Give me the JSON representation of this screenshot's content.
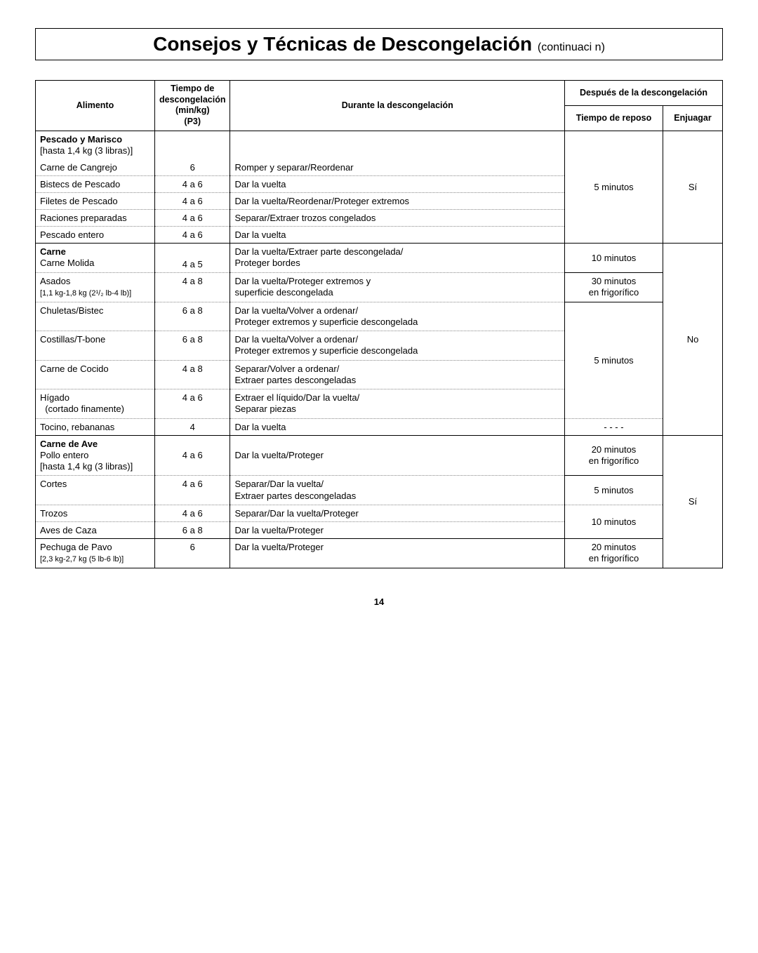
{
  "title": "Consejos y Técnicas de Descongelación",
  "titleCont": "(continuaci n)",
  "headers": {
    "alimento": "Alimento",
    "tiempo": "Tiempo de descongelación (min/kg) (P3)",
    "tiempoL1": "Tiempo de",
    "tiempoL2": "descongelación",
    "tiempoL3": "(min/kg)",
    "tiempoL4": "(P3)",
    "durante": "Durante la descongelación",
    "despues": "Después de la descongelación",
    "reposo": "Tiempo de reposo",
    "enjuagar": "Enjuagar"
  },
  "sections": {
    "pescado": {
      "groupTitle": "Pescado y Marisco",
      "groupSub": "[hasta 1,4 kg (3 libras)]",
      "rows": {
        "cangrejo": {
          "alimento": "Carne de Cangrejo",
          "tiempo": "6",
          "durante": "Romper y separar/Reordenar"
        },
        "bistecs": {
          "alimento": "Bistecs de Pescado",
          "tiempo": "4 a 6",
          "durante": "Dar la vuelta"
        },
        "filetes": {
          "alimento": "Filetes de Pescado",
          "tiempo": "4 a 6",
          "durante": "Dar la vuelta/Reordenar/Proteger extremos"
        },
        "raciones": {
          "alimento": "Raciones preparadas",
          "tiempo": "4 a 6",
          "durante": "Separar/Extraer trozos congelados"
        },
        "entero": {
          "alimento": "Pescado entero",
          "tiempo": "4 a 6",
          "durante": "Dar la vuelta"
        }
      },
      "reposo": "5 minutos",
      "enjuagar": "Sí"
    },
    "carne": {
      "rows": {
        "molida": {
          "alimentoL1": "Carne",
          "alimentoL2": "Carne Molida",
          "tiempo": "4 a 5",
          "duranteL1": "Dar la vuelta/Extraer parte descongelada/",
          "duranteL2": "Proteger bordes",
          "reposo": "10 minutos"
        },
        "asados": {
          "alimentoL1": "Asados",
          "alimentoL2": "[1,1 kg-1,8 kg (2¹/₂ lb-4 lb)]",
          "tiempo": "4 a 8",
          "duranteL1": "Dar la vuelta/Proteger extremos y",
          "duranteL2": "superficie descongelada",
          "reposoL1": "30 minutos",
          "reposoL2": "en frigorífico"
        },
        "chuletas": {
          "alimento": "Chuletas/Bistec",
          "tiempo": "6 a 8",
          "duranteL1": "Dar la vuelta/Volver a ordenar/",
          "duranteL2": "Proteger extremos y superficie descongelada"
        },
        "costillas": {
          "alimento": "Costillas/T-bone",
          "tiempo": "6 a 8",
          "duranteL1": "Dar la vuelta/Volver a ordenar/",
          "duranteL2": "Proteger extremos y superficie descongelada"
        },
        "cocido": {
          "alimento": "Carne de Cocido",
          "tiempo": "4 a 8",
          "duranteL1": "Separar/Volver a ordenar/",
          "duranteL2": "Extraer partes descongeladas"
        },
        "higado": {
          "alimentoL1": "Hígado",
          "alimentoL2": "  (cortado finamente)",
          "tiempo": "4 a 6",
          "duranteL1": "Extraer el líquido/Dar la vuelta/",
          "duranteL2": "Separar piezas"
        },
        "tocino": {
          "alimento": "Tocino, rebananas",
          "tiempo": "4",
          "durante": "Dar la vuelta",
          "reposo": "- - - -"
        }
      },
      "reposoMid": "5 minutos",
      "enjuagar": "No"
    },
    "ave": {
      "rows": {
        "pollo": {
          "alimentoL1": "Carne de Ave",
          "alimentoL2": "Pollo entero",
          "alimentoL3": "[hasta 1,4 kg (3 libras)]",
          "tiempo": "4 a 6",
          "durante": "Dar la vuelta/Proteger",
          "reposoL1": "20 minutos",
          "reposoL2": "en frigorífico"
        },
        "cortes": {
          "alimento": "Cortes",
          "tiempo": "4 a 6",
          "duranteL1": "Separar/Dar la vuelta/",
          "duranteL2": "Extraer partes descongeladas",
          "reposo": "5 minutos"
        },
        "trozos": {
          "alimento": "Trozos",
          "tiempo": "4 a 6",
          "durante": "Separar/Dar la vuelta/Proteger"
        },
        "caza": {
          "alimento": "Aves de Caza",
          "tiempo": "6 a 8",
          "durante": "Dar la vuelta/Proteger",
          "reposo": "10 minutos"
        },
        "pechuga": {
          "alimentoL1": "Pechuga de Pavo",
          "alimentoL2": "[2,3 kg-2,7 kg (5 lb-6 lb)]",
          "tiempo": "6",
          "durante": "Dar la vuelta/Proteger",
          "reposoL1": "20 minutos",
          "reposoL2": "en frigorífico"
        }
      },
      "enjuagar": "Sí"
    }
  },
  "pageNumber": "14"
}
